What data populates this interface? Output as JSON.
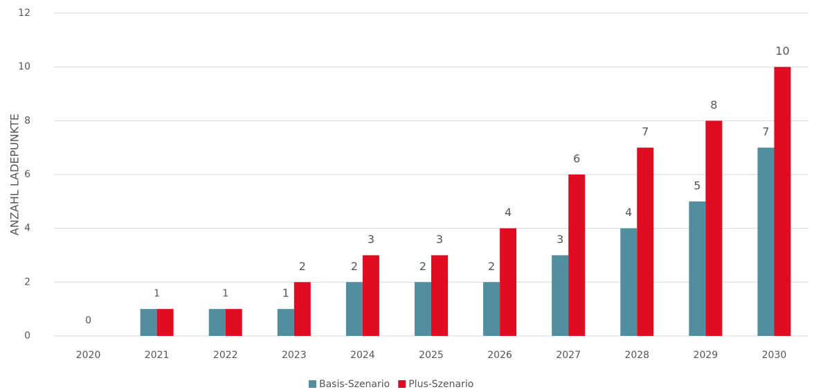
{
  "chart_data": {
    "type": "bar",
    "y_label": "ANZAHL LADEPUNKTE",
    "categories": [
      "2020",
      "2021",
      "2022",
      "2023",
      "2024",
      "2025",
      "2026",
      "2027",
      "2028",
      "2029",
      "2030"
    ],
    "series": [
      {
        "name": "Basis-Szenario",
        "color": "#518e9f",
        "values": [
          0,
          1,
          1,
          1,
          2,
          2,
          2,
          3,
          4,
          5,
          7
        ]
      },
      {
        "name": "Plus-Szenario",
        "color": "#e00c22",
        "values": [
          0,
          1,
          1,
          2,
          3,
          3,
          4,
          6,
          7,
          8,
          10
        ]
      }
    ],
    "ylim": [
      0,
      12
    ],
    "yticks": [
      0,
      2,
      4,
      6,
      8,
      10,
      12
    ],
    "grid": true,
    "legend": "bottom"
  }
}
